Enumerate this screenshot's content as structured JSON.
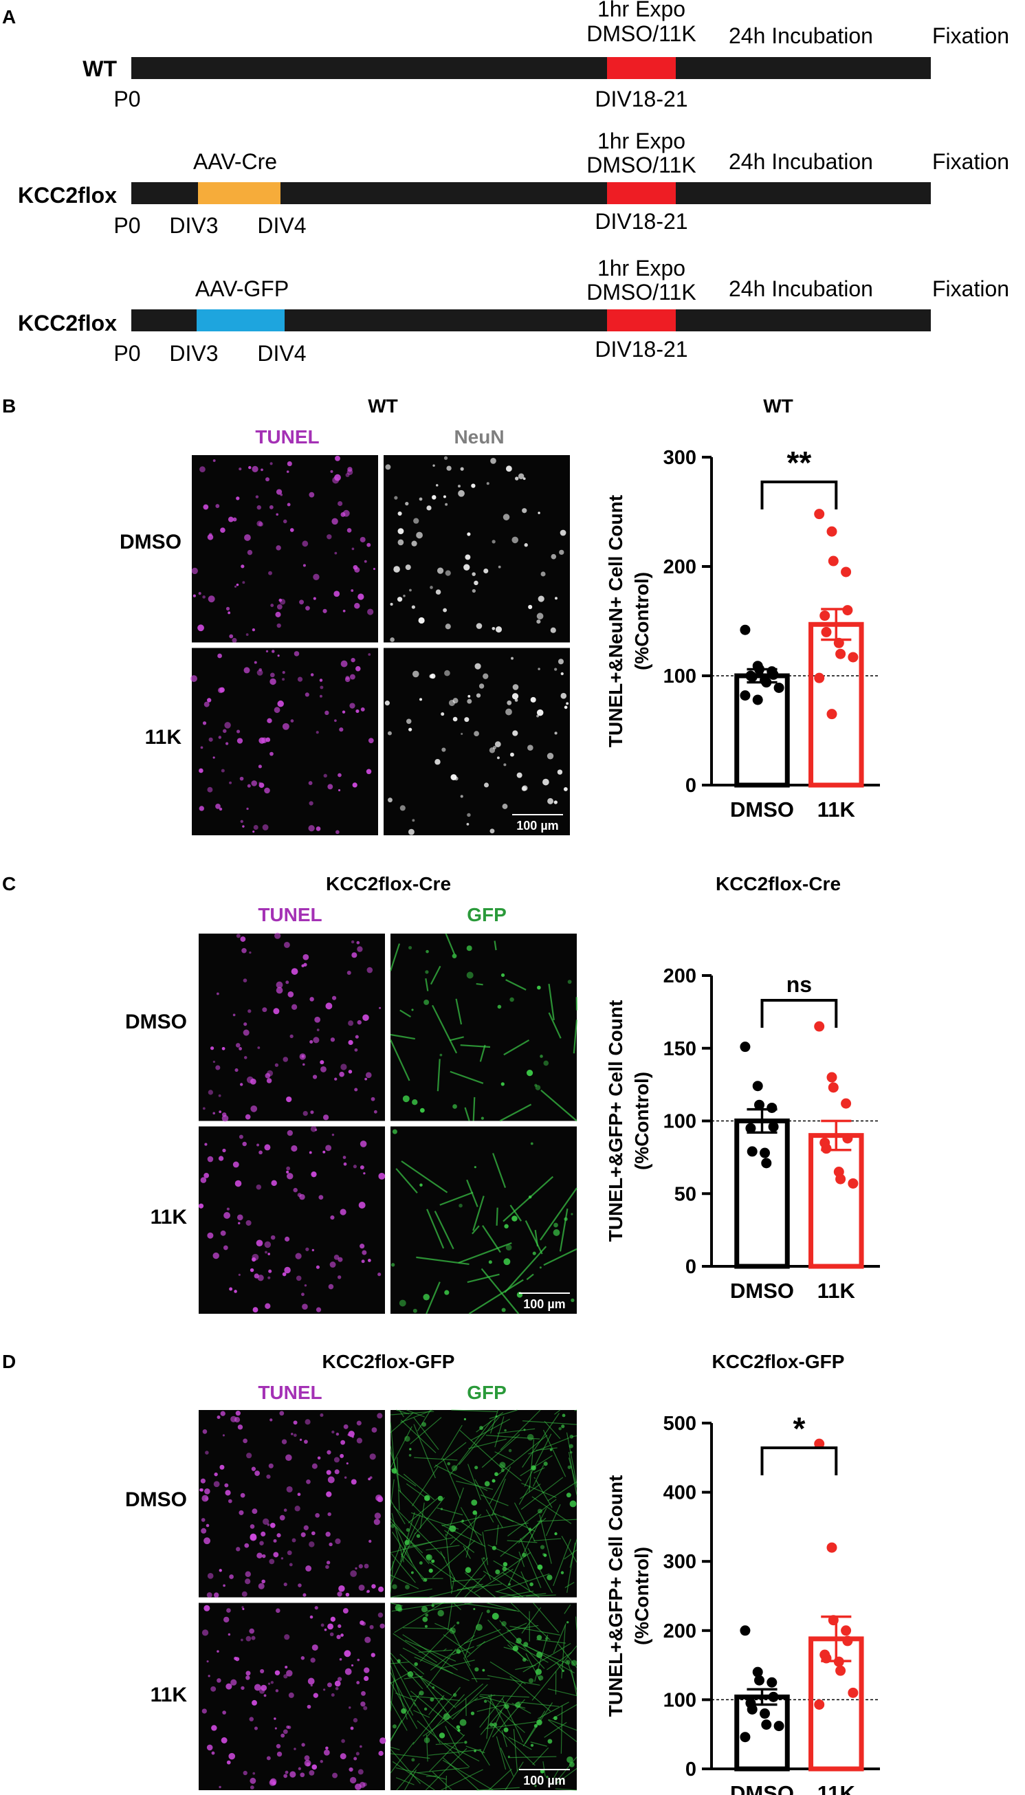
{
  "panel_a": {
    "letter": "A",
    "rows": [
      {
        "label": "WT",
        "p0": "P0",
        "virus_label": "",
        "virus_color": "",
        "div3": "",
        "div4": "",
        "expo_line1": "1hr Expo",
        "expo_line2": "DMSO/11K",
        "expo_div": "DIV18-21",
        "incubation": "24h Incubation",
        "fixation": "Fixation"
      },
      {
        "label": "KCC2flox",
        "p0": "P0",
        "virus_label": "AAV-Cre",
        "virus_color": "#f6ac3a",
        "div3": "DIV3",
        "div4": "DIV4",
        "expo_line1": "1hr Expo",
        "expo_line2": "DMSO/11K",
        "expo_div": "DIV18-21",
        "incubation": "24h Incubation",
        "fixation": "Fixation"
      },
      {
        "label": "KCC2flox",
        "p0": "P0",
        "virus_label": "AAV-GFP",
        "virus_color": "#1ea5de",
        "div3": "DIV3",
        "div4": "DIV4",
        "expo_line1": "1hr Expo",
        "expo_line2": "DMSO/11K",
        "expo_div": "DIV18-21",
        "incubation": "24h Incubation",
        "fixation": "Fixation"
      }
    ],
    "colors": {
      "timeline": "#1a1a1a",
      "exposure": "#ee1d24"
    }
  },
  "panels": [
    {
      "letter": "B",
      "title": "WT",
      "stain1": "TUNEL",
      "stain2": "NeuN",
      "stain1_color": "#a431b5",
      "stain2_color": "#7f7f7f",
      "row1": "DMSO",
      "row2": "11K",
      "scale": "100 µm",
      "tint1": "#d04ae0",
      "tint2": "#ffffff",
      "stain2_kind": "dots"
    },
    {
      "letter": "C",
      "title": "KCC2flox-Cre",
      "stain1": "TUNEL",
      "stain2": "GFP",
      "stain1_color": "#a431b5",
      "stain2_color": "#2a9a3a",
      "row1": "DMSO",
      "row2": "11K",
      "scale": "100 µm",
      "tint1": "#d04ae0",
      "tint2": "#3ccc48",
      "stain2_kind": "net"
    },
    {
      "letter": "D",
      "title": "KCC2flox-GFP",
      "stain1": "TUNEL",
      "stain2": "GFP",
      "stain1_color": "#a431b5",
      "stain2_color": "#2a9a3a",
      "row1": "DMSO",
      "row2": "11K",
      "scale": "100 µm",
      "tint1": "#d04ae0",
      "tint2": "#3ccc48",
      "stain2_kind": "dense"
    }
  ],
  "chart_data": [
    {
      "type": "bar",
      "title": "WT",
      "categories": [
        "DMSO",
        "11K"
      ],
      "ylabel": "TUNEL+&NeuN+ Cell Count (%Control)",
      "ylim": [
        0,
        300
      ],
      "yticks": [
        0,
        100,
        200,
        300
      ],
      "values": [
        100,
        147
      ],
      "sem": [
        6,
        14
      ],
      "points": [
        [
          142,
          109,
          106,
          104,
          101,
          100,
          99,
          96,
          94,
          89,
          82,
          78
        ],
        [
          248,
          232,
          205,
          195,
          160,
          155,
          140,
          130,
          120,
          117,
          98,
          65
        ]
      ],
      "significance": "**",
      "reference_line": 100,
      "colors": [
        "#000000",
        "#ee2a24"
      ]
    },
    {
      "type": "bar",
      "title": "KCC2flox-Cre",
      "categories": [
        "DMSO",
        "11K"
      ],
      "ylabel": "TUNEL+&GFP+ Cell Count (%Control)",
      "ylim": [
        0,
        200
      ],
      "yticks": [
        0,
        50,
        100,
        150,
        200
      ],
      "values": [
        100,
        90
      ],
      "sem": [
        8,
        10
      ],
      "points": [
        [
          151,
          124,
          111,
          109,
          96,
          95,
          79,
          78,
          71
        ],
        [
          165,
          130,
          123,
          112,
          88,
          85,
          81,
          65,
          60,
          57
        ]
      ],
      "significance": "ns",
      "reference_line": 100,
      "colors": [
        "#000000",
        "#ee2a24"
      ]
    },
    {
      "type": "bar",
      "title": "KCC2flox-GFP",
      "categories": [
        "DMSO",
        "11K"
      ],
      "ylabel": "TUNEL+&GFP+ Cell Count (%Control)",
      "ylim": [
        0,
        500
      ],
      "yticks": [
        0,
        100,
        200,
        300,
        400,
        500
      ],
      "values": [
        104,
        188
      ],
      "sem": [
        11,
        32
      ],
      "points": [
        [
          200,
          140,
          128,
          125,
          104,
          95,
          86,
          80,
          64,
          62,
          46
        ],
        [
          470,
          320,
          215,
          200,
          185,
          165,
          160,
          155,
          142,
          110,
          93
        ]
      ],
      "significance": "*",
      "reference_line": 100,
      "colors": [
        "#000000",
        "#ee2a24"
      ]
    }
  ]
}
